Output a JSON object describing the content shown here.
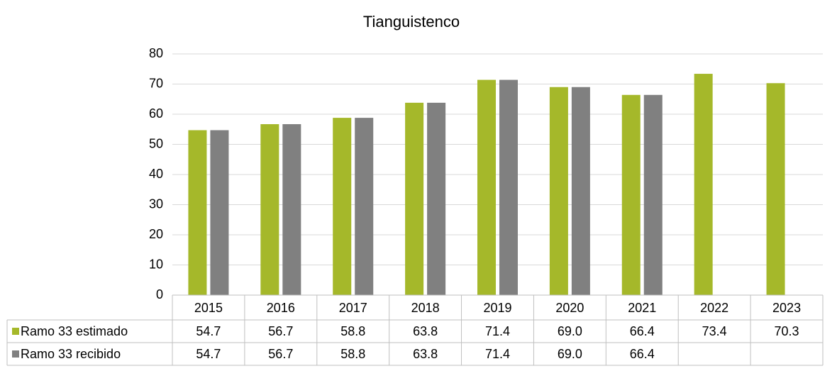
{
  "chart_data": {
    "type": "bar",
    "title": "Tianguistenco",
    "categories": [
      "2015",
      "2016",
      "2017",
      "2018",
      "2019",
      "2020",
      "2021",
      "2022",
      "2023"
    ],
    "series": [
      {
        "name": "Ramo 33 estimado",
        "color": "#a5b82a",
        "values": [
          54.7,
          56.7,
          58.8,
          63.8,
          71.4,
          69.0,
          66.4,
          73.4,
          70.3
        ],
        "value_labels": [
          "54.7",
          "56.7",
          "58.8",
          "63.8",
          "71.4",
          "69.0",
          "66.4",
          "73.4",
          "70.3"
        ]
      },
      {
        "name": "Ramo 33 recibido",
        "color": "#808080",
        "values": [
          54.7,
          56.7,
          58.8,
          63.8,
          71.4,
          69.0,
          66.4,
          null,
          null
        ],
        "value_labels": [
          "54.7",
          "56.7",
          "58.8",
          "63.8",
          "71.4",
          "69.0",
          "66.4",
          null,
          null
        ]
      }
    ],
    "ylim": [
      0,
      80
    ],
    "yticks": [
      0,
      10,
      20,
      30,
      40,
      50,
      60,
      70,
      80
    ],
    "grid": true
  }
}
